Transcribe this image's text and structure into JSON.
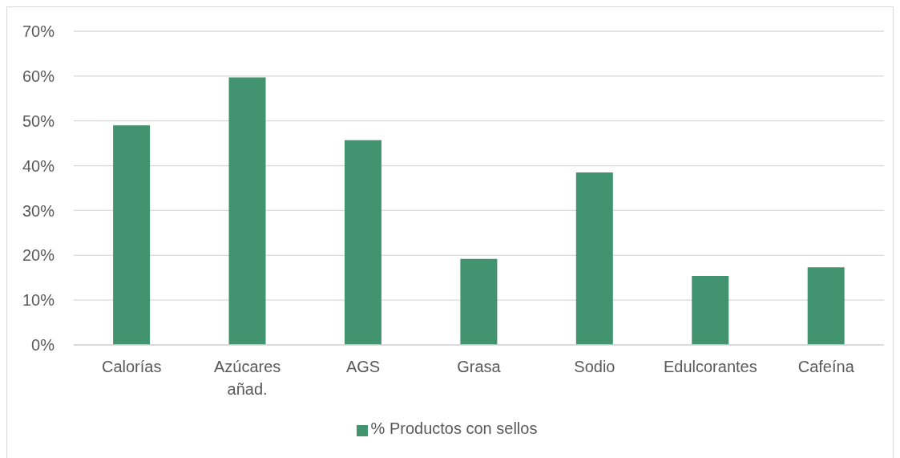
{
  "chart_data": {
    "type": "bar",
    "categories": [
      "Calorías",
      "Azúcares añad.",
      "AGS",
      "Grasa",
      "Sodio",
      "Edulcorantes",
      "Cafeína"
    ],
    "series": [
      {
        "name": "% Productos con sellos",
        "color": "#42936f",
        "values": [
          49,
          59.7,
          45.7,
          19.2,
          38.5,
          15.4,
          17.3
        ]
      }
    ],
    "ylim": [
      0,
      70
    ],
    "yticks": [
      {
        "value": 0,
        "label": "0%"
      },
      {
        "value": 10,
        "label": "10%"
      },
      {
        "value": 20,
        "label": "20%"
      },
      {
        "value": 30,
        "label": "30%"
      },
      {
        "value": 40,
        "label": "40%"
      },
      {
        "value": 50,
        "label": "50%"
      },
      {
        "value": 60,
        "label": "60%"
      },
      {
        "value": 70,
        "label": "70%"
      }
    ],
    "grid": "y",
    "legend": "bottom"
  }
}
